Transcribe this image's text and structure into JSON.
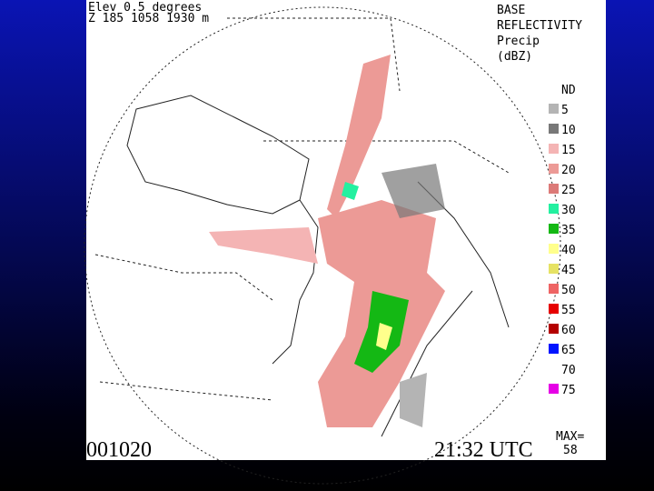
{
  "header": {
    "elevation": "Elev 0.5 degrees",
    "site": "Z 185 1058 1930 m"
  },
  "product": {
    "line1": "BASE",
    "line2": "REFLECTIVITY",
    "line3": "Precip",
    "units": "(dBZ)"
  },
  "legend": [
    {
      "label": "ND",
      "color": null
    },
    {
      "label": "5",
      "color": "#b4b4b4"
    },
    {
      "label": "10",
      "color": "#787878"
    },
    {
      "label": "15",
      "color": "#f4b4b4"
    },
    {
      "label": "20",
      "color": "#ec9a96"
    },
    {
      "label": "25",
      "color": "#dc7a78"
    },
    {
      "label": "30",
      "color": "#24f0a0"
    },
    {
      "label": "35",
      "color": "#14b814"
    },
    {
      "label": "40",
      "color": "#ffff8c"
    },
    {
      "label": "45",
      "color": "#e6e264"
    },
    {
      "label": "50",
      "color": "#ee6464"
    },
    {
      "label": "55",
      "color": "#e60000"
    },
    {
      "label": "60",
      "color": "#b40000"
    },
    {
      "label": "65",
      "color": "#0014ff"
    },
    {
      "label": "70",
      "color": null
    },
    {
      "label": "75",
      "color": "#e600e6"
    }
  ],
  "footer": {
    "date": "001020",
    "time": "21:32 UTC",
    "max_label": "MAX=",
    "max_value": "58"
  }
}
